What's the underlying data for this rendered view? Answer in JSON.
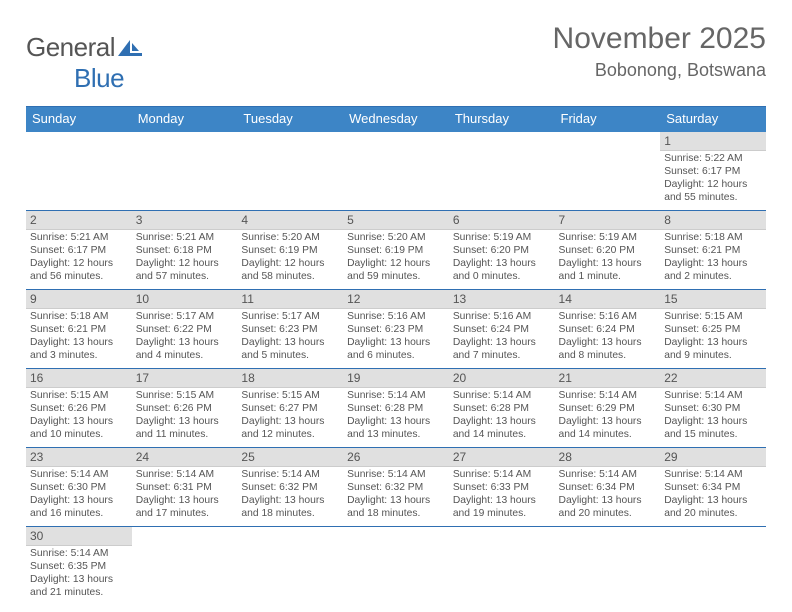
{
  "brand": {
    "text_part1": "General",
    "text_part2": "Blue",
    "font_color1": "#555555",
    "font_color2": "#2f6fb2"
  },
  "title": "November 2025",
  "location": "Bobonong, Botswana",
  "weekday_bg": "#3d85c6",
  "border_color": "#2f6fb2",
  "daynum_bg": "#e0e0e0",
  "weekdays": [
    "Sunday",
    "Monday",
    "Tuesday",
    "Wednesday",
    "Thursday",
    "Friday",
    "Saturday"
  ],
  "labels": {
    "sunrise": "Sunrise:",
    "sunset": "Sunset:",
    "daylight": "Daylight:"
  },
  "days": [
    {
      "n": 1,
      "sunrise": "5:22 AM",
      "sunset": "6:17 PM",
      "day_h": 12,
      "day_m": 55,
      "min_word": "minutes"
    },
    {
      "n": 2,
      "sunrise": "5:21 AM",
      "sunset": "6:17 PM",
      "day_h": 12,
      "day_m": 56,
      "min_word": "minutes"
    },
    {
      "n": 3,
      "sunrise": "5:21 AM",
      "sunset": "6:18 PM",
      "day_h": 12,
      "day_m": 57,
      "min_word": "minutes"
    },
    {
      "n": 4,
      "sunrise": "5:20 AM",
      "sunset": "6:19 PM",
      "day_h": 12,
      "day_m": 58,
      "min_word": "minutes"
    },
    {
      "n": 5,
      "sunrise": "5:20 AM",
      "sunset": "6:19 PM",
      "day_h": 12,
      "day_m": 59,
      "min_word": "minutes"
    },
    {
      "n": 6,
      "sunrise": "5:19 AM",
      "sunset": "6:20 PM",
      "day_h": 13,
      "day_m": 0,
      "min_word": "minutes"
    },
    {
      "n": 7,
      "sunrise": "5:19 AM",
      "sunset": "6:20 PM",
      "day_h": 13,
      "day_m": 1,
      "min_word": "minute"
    },
    {
      "n": 8,
      "sunrise": "5:18 AM",
      "sunset": "6:21 PM",
      "day_h": 13,
      "day_m": 2,
      "min_word": "minutes"
    },
    {
      "n": 9,
      "sunrise": "5:18 AM",
      "sunset": "6:21 PM",
      "day_h": 13,
      "day_m": 3,
      "min_word": "minutes"
    },
    {
      "n": 10,
      "sunrise": "5:17 AM",
      "sunset": "6:22 PM",
      "day_h": 13,
      "day_m": 4,
      "min_word": "minutes"
    },
    {
      "n": 11,
      "sunrise": "5:17 AM",
      "sunset": "6:23 PM",
      "day_h": 13,
      "day_m": 5,
      "min_word": "minutes"
    },
    {
      "n": 12,
      "sunrise": "5:16 AM",
      "sunset": "6:23 PM",
      "day_h": 13,
      "day_m": 6,
      "min_word": "minutes"
    },
    {
      "n": 13,
      "sunrise": "5:16 AM",
      "sunset": "6:24 PM",
      "day_h": 13,
      "day_m": 7,
      "min_word": "minutes"
    },
    {
      "n": 14,
      "sunrise": "5:16 AM",
      "sunset": "6:24 PM",
      "day_h": 13,
      "day_m": 8,
      "min_word": "minutes"
    },
    {
      "n": 15,
      "sunrise": "5:15 AM",
      "sunset": "6:25 PM",
      "day_h": 13,
      "day_m": 9,
      "min_word": "minutes"
    },
    {
      "n": 16,
      "sunrise": "5:15 AM",
      "sunset": "6:26 PM",
      "day_h": 13,
      "day_m": 10,
      "min_word": "minutes"
    },
    {
      "n": 17,
      "sunrise": "5:15 AM",
      "sunset": "6:26 PM",
      "day_h": 13,
      "day_m": 11,
      "min_word": "minutes"
    },
    {
      "n": 18,
      "sunrise": "5:15 AM",
      "sunset": "6:27 PM",
      "day_h": 13,
      "day_m": 12,
      "min_word": "minutes"
    },
    {
      "n": 19,
      "sunrise": "5:14 AM",
      "sunset": "6:28 PM",
      "day_h": 13,
      "day_m": 13,
      "min_word": "minutes"
    },
    {
      "n": 20,
      "sunrise": "5:14 AM",
      "sunset": "6:28 PM",
      "day_h": 13,
      "day_m": 14,
      "min_word": "minutes"
    },
    {
      "n": 21,
      "sunrise": "5:14 AM",
      "sunset": "6:29 PM",
      "day_h": 13,
      "day_m": 14,
      "min_word": "minutes"
    },
    {
      "n": 22,
      "sunrise": "5:14 AM",
      "sunset": "6:30 PM",
      "day_h": 13,
      "day_m": 15,
      "min_word": "minutes"
    },
    {
      "n": 23,
      "sunrise": "5:14 AM",
      "sunset": "6:30 PM",
      "day_h": 13,
      "day_m": 16,
      "min_word": "minutes"
    },
    {
      "n": 24,
      "sunrise": "5:14 AM",
      "sunset": "6:31 PM",
      "day_h": 13,
      "day_m": 17,
      "min_word": "minutes"
    },
    {
      "n": 25,
      "sunrise": "5:14 AM",
      "sunset": "6:32 PM",
      "day_h": 13,
      "day_m": 18,
      "min_word": "minutes"
    },
    {
      "n": 26,
      "sunrise": "5:14 AM",
      "sunset": "6:32 PM",
      "day_h": 13,
      "day_m": 18,
      "min_word": "minutes"
    },
    {
      "n": 27,
      "sunrise": "5:14 AM",
      "sunset": "6:33 PM",
      "day_h": 13,
      "day_m": 19,
      "min_word": "minutes"
    },
    {
      "n": 28,
      "sunrise": "5:14 AM",
      "sunset": "6:34 PM",
      "day_h": 13,
      "day_m": 20,
      "min_word": "minutes"
    },
    {
      "n": 29,
      "sunrise": "5:14 AM",
      "sunset": "6:34 PM",
      "day_h": 13,
      "day_m": 20,
      "min_word": "minutes"
    },
    {
      "n": 30,
      "sunrise": "5:14 AM",
      "sunset": "6:35 PM",
      "day_h": 13,
      "day_m": 21,
      "min_word": "minutes"
    }
  ],
  "leading_blanks": 6
}
